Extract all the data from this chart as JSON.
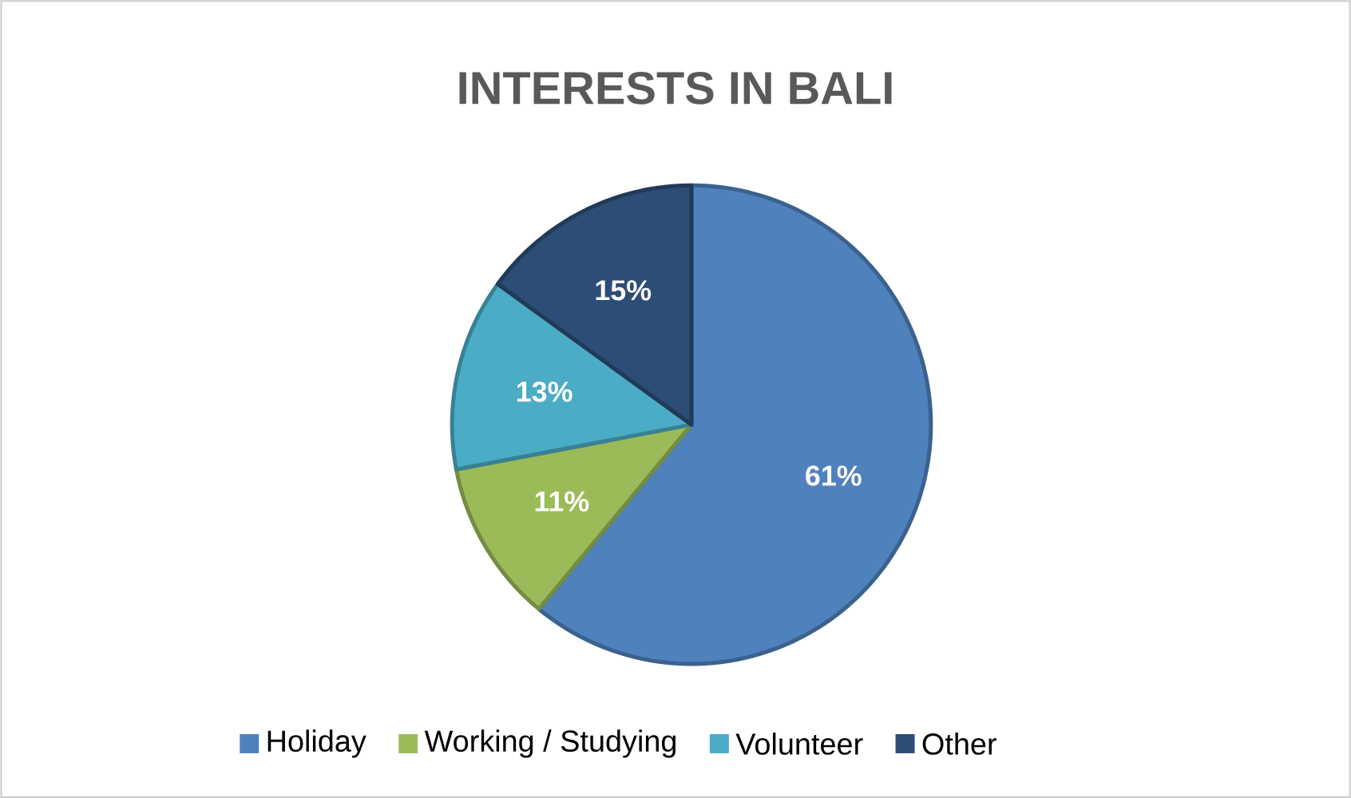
{
  "chart_data": {
    "type": "pie",
    "title": "INTERESTS IN BALI",
    "categories": [
      "Holiday",
      "Working / Studying",
      "Volunteer",
      "Other"
    ],
    "values": [
      61,
      11,
      13,
      15
    ],
    "value_labels": [
      "61%",
      "11%",
      "13%",
      "15%"
    ],
    "colors": [
      "#4f81bd",
      "#9bbb59",
      "#4bacc6",
      "#2c4d75"
    ],
    "legend": "bottom"
  }
}
